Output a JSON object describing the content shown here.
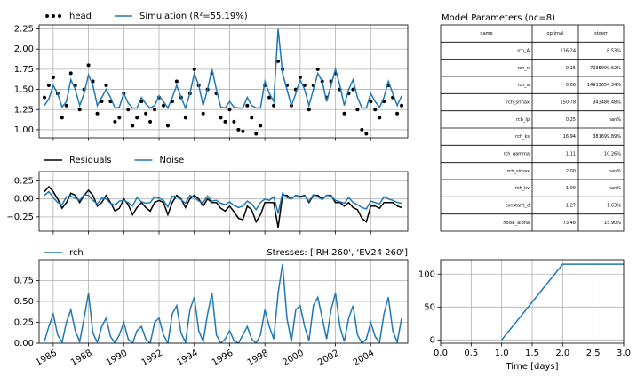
{
  "chart_data": [
    {
      "type": "line",
      "grid": true,
      "x": [
        1985.5,
        1985.75,
        1986,
        1986.25,
        1986.5,
        1986.75,
        1987,
        1987.25,
        1987.5,
        1987.75,
        1988,
        1988.25,
        1988.5,
        1988.75,
        1989,
        1989.25,
        1989.5,
        1989.75,
        1990,
        1990.25,
        1990.5,
        1990.75,
        1991,
        1991.25,
        1991.5,
        1991.75,
        1992,
        1992.25,
        1992.5,
        1992.75,
        1993,
        1993.25,
        1993.5,
        1993.75,
        1994,
        1994.25,
        1994.5,
        1994.75,
        1995,
        1995.25,
        1995.5,
        1995.75,
        1996,
        1996.25,
        1996.5,
        1996.75,
        1997,
        1997.25,
        1997.5,
        1997.75,
        1998,
        1998.25,
        1998.5,
        1998.75,
        1999,
        1999.25,
        1999.5,
        1999.75,
        2000,
        2000.25,
        2000.5,
        2000.75,
        2001,
        2001.25,
        2001.5,
        2001.75,
        2002,
        2002.25,
        2002.5,
        2002.75,
        2003,
        2003.25,
        2003.5,
        2003.75,
        2004,
        2004.25,
        2004.5,
        2004.75,
        2005,
        2005.25,
        2005.5,
        2005.75
      ],
      "xlim": [
        1985.2,
        2006.1
      ],
      "xticks": [
        1986,
        1988,
        1990,
        1992,
        1994,
        1996,
        1998,
        2000,
        2002,
        2004
      ],
      "ylim": [
        0.9,
        2.3
      ],
      "yticks": [
        {
          "value": 1,
          "label": "1.00"
        },
        {
          "value": 1.25,
          "label": "1.25"
        },
        {
          "value": 1.5,
          "label": "1.50"
        },
        {
          "value": 1.75,
          "label": "1.75"
        },
        {
          "value": 2,
          "label": "2.00"
        },
        {
          "value": 2.25,
          "label": "2.25"
        }
      ],
      "series": [
        {
          "name": "head",
          "color": "#000000",
          "style": "dots",
          "values": [
            1.4,
            1.55,
            1.65,
            1.45,
            1.15,
            1.3,
            1.7,
            1.55,
            1.25,
            1.5,
            1.8,
            1.6,
            1.2,
            1.35,
            1.55,
            1.35,
            1.1,
            1.15,
            1.45,
            1.25,
            1.05,
            1.15,
            1.35,
            1.2,
            1.1,
            1.25,
            1.4,
            1.3,
            1.05,
            1.35,
            1.6,
            1.4,
            1.15,
            1.45,
            1.75,
            1.55,
            1.2,
            1.5,
            1.7,
            1.45,
            1.15,
            1.1,
            1.25,
            1.1,
            1.0,
            0.98,
            1.3,
            1.15,
            0.95,
            1.05,
            1.55,
            1.4,
            1.3,
            1.85,
            1.75,
            1.55,
            1.3,
            1.5,
            1.65,
            1.55,
            1.25,
            1.55,
            1.75,
            1.6,
            1.4,
            1.6,
            1.7,
            1.5,
            1.2,
            1.45,
            1.5,
            1.25,
            1.0,
            0.95,
            1.35,
            1.25,
            1.15,
            1.35,
            1.55,
            1.4,
            1.2,
            1.3
          ]
        },
        {
          "name": "Simulation (R²=55.19%)",
          "color": "#1f77b4",
          "style": "line",
          "values": [
            1.3,
            1.38,
            1.55,
            1.45,
            1.28,
            1.35,
            1.62,
            1.5,
            1.3,
            1.45,
            1.68,
            1.55,
            1.3,
            1.4,
            1.5,
            1.4,
            1.27,
            1.28,
            1.45,
            1.33,
            1.27,
            1.27,
            1.4,
            1.32,
            1.27,
            1.3,
            1.42,
            1.35,
            1.27,
            1.4,
            1.55,
            1.4,
            1.27,
            1.45,
            1.7,
            1.55,
            1.3,
            1.5,
            1.75,
            1.5,
            1.28,
            1.27,
            1.35,
            1.28,
            1.27,
            1.27,
            1.4,
            1.3,
            1.27,
            1.27,
            1.6,
            1.45,
            1.35,
            2.25,
            1.7,
            1.5,
            1.3,
            1.45,
            1.62,
            1.5,
            1.3,
            1.5,
            1.7,
            1.6,
            1.35,
            1.55,
            1.75,
            1.55,
            1.3,
            1.5,
            1.62,
            1.4,
            1.27,
            1.27,
            1.45,
            1.35,
            1.28,
            1.4,
            1.6,
            1.45,
            1.3,
            1.42
          ]
        }
      ]
    },
    {
      "type": "line",
      "grid": true,
      "x": [
        1985.5,
        1985.75,
        1986,
        1986.25,
        1986.5,
        1986.75,
        1987,
        1987.25,
        1987.5,
        1987.75,
        1988,
        1988.25,
        1988.5,
        1988.75,
        1989,
        1989.25,
        1989.5,
        1989.75,
        1990,
        1990.25,
        1990.5,
        1990.75,
        1991,
        1991.25,
        1991.5,
        1991.75,
        1992,
        1992.25,
        1992.5,
        1992.75,
        1993,
        1993.25,
        1993.5,
        1993.75,
        1994,
        1994.25,
        1994.5,
        1994.75,
        1995,
        1995.25,
        1995.5,
        1995.75,
        1996,
        1996.25,
        1996.5,
        1996.75,
        1997,
        1997.25,
        1997.5,
        1997.75,
        1998,
        1998.25,
        1998.5,
        1998.75,
        1999,
        1999.25,
        1999.5,
        1999.75,
        2000,
        2000.25,
        2000.5,
        2000.75,
        2001,
        2001.25,
        2001.5,
        2001.75,
        2002,
        2002.25,
        2002.5,
        2002.75,
        2003,
        2003.25,
        2003.5,
        2003.75,
        2004,
        2004.25,
        2004.5,
        2004.75,
        2005,
        2005.25,
        2005.5,
        2005.75
      ],
      "xlim": [
        1985.2,
        2006.1
      ],
      "xticks": [
        1986,
        1988,
        1990,
        1992,
        1994,
        1996,
        1998,
        2000,
        2002,
        2004
      ],
      "ylim": [
        -0.45,
        0.38
      ],
      "yticks": [
        {
          "value": -0.25,
          "label": "−0.25"
        },
        {
          "value": 0,
          "label": "0.00"
        },
        {
          "value": 0.25,
          "label": "0.25"
        }
      ],
      "series": [
        {
          "name": "Residuals",
          "color": "#000000",
          "style": "line",
          "values": [
            0.1,
            0.17,
            0.1,
            0.0,
            -0.13,
            -0.05,
            0.08,
            0.05,
            -0.05,
            0.05,
            0.12,
            0.05,
            -0.1,
            -0.05,
            0.05,
            -0.05,
            -0.17,
            -0.13,
            0.0,
            -0.08,
            -0.22,
            -0.12,
            -0.05,
            -0.12,
            -0.17,
            -0.05,
            -0.02,
            -0.05,
            -0.22,
            -0.05,
            0.05,
            0.0,
            -0.12,
            0.0,
            0.05,
            0.0,
            -0.1,
            0.0,
            -0.05,
            -0.05,
            -0.13,
            -0.17,
            -0.1,
            -0.18,
            -0.27,
            -0.29,
            -0.1,
            -0.15,
            -0.32,
            -0.22,
            -0.05,
            -0.05,
            -0.05,
            -0.4,
            0.05,
            0.05,
            0.0,
            0.05,
            0.03,
            0.05,
            -0.05,
            0.05,
            0.05,
            0.0,
            0.05,
            0.05,
            -0.05,
            -0.05,
            -0.1,
            -0.05,
            -0.12,
            -0.15,
            -0.27,
            -0.32,
            -0.1,
            -0.1,
            -0.13,
            -0.05,
            -0.05,
            -0.05,
            -0.1,
            -0.12
          ]
        },
        {
          "name": "Noise",
          "color": "#1f77b4",
          "style": "line",
          "values": [
            0.05,
            0.1,
            0.02,
            -0.05,
            -0.08,
            0.03,
            0.04,
            0.01,
            -0.02,
            0.06,
            0.05,
            -0.02,
            -0.07,
            0.01,
            0.0,
            -0.06,
            -0.09,
            -0.03,
            -0.02,
            -0.05,
            -0.1,
            0.02,
            -0.04,
            -0.06,
            -0.05,
            0.03,
            0.01,
            -0.02,
            -0.11,
            0.04,
            0.03,
            -0.01,
            -0.06,
            0.05,
            0.02,
            -0.03,
            -0.05,
            0.04,
            -0.03,
            -0.02,
            -0.06,
            -0.08,
            -0.04,
            -0.09,
            -0.12,
            -0.1,
            -0.03,
            -0.07,
            -0.15,
            -0.05,
            0.0,
            -0.02,
            0.03,
            -0.2,
            0.08,
            0.02,
            0.0,
            0.05,
            0.02,
            0.04,
            -0.03,
            0.06,
            0.03,
            -0.01,
            0.05,
            0.04,
            -0.02,
            -0.04,
            -0.06,
            0.02,
            -0.05,
            -0.08,
            -0.12,
            -0.14,
            -0.03,
            -0.05,
            -0.07,
            0.03,
            0.0,
            -0.02,
            -0.05,
            -0.06
          ]
        }
      ]
    },
    {
      "type": "line",
      "grid": true,
      "title": "Stresses: ['RH 260', 'EV24 260']",
      "x": [
        1985.5,
        1985.75,
        1986,
        1986.25,
        1986.5,
        1986.75,
        1987,
        1987.25,
        1987.5,
        1987.75,
        1988,
        1988.25,
        1988.5,
        1988.75,
        1989,
        1989.25,
        1989.5,
        1989.75,
        1990,
        1990.25,
        1990.5,
        1990.75,
        1991,
        1991.25,
        1991.5,
        1991.75,
        1992,
        1992.25,
        1992.5,
        1992.75,
        1993,
        1993.25,
        1993.5,
        1993.75,
        1994,
        1994.25,
        1994.5,
        1994.75,
        1995,
        1995.25,
        1995.5,
        1995.75,
        1996,
        1996.25,
        1996.5,
        1996.75,
        1997,
        1997.25,
        1997.5,
        1997.75,
        1998,
        1998.25,
        1998.5,
        1998.75,
        1999,
        1999.25,
        1999.5,
        1999.75,
        2000,
        2000.25,
        2000.5,
        2000.75,
        2001,
        2001.25,
        2001.5,
        2001.75,
        2002,
        2002.25,
        2002.5,
        2002.75,
        2003,
        2003.25,
        2003.5,
        2003.75,
        2004,
        2004.25,
        2004.5,
        2004.75,
        2005,
        2005.25,
        2005.5,
        2005.75
      ],
      "xlim": [
        1985.2,
        2006.1
      ],
      "xticks": [
        1986,
        1988,
        1990,
        1992,
        1994,
        1996,
        1998,
        2000,
        2002,
        2004
      ],
      "ylim": [
        0,
        1.0
      ],
      "yticks": [
        {
          "value": 0,
          "label": "0.00"
        },
        {
          "value": 0.25,
          "label": "0.25"
        },
        {
          "value": 0.5,
          "label": "0.50"
        },
        {
          "value": 0.75,
          "label": "0.75"
        }
      ],
      "series": [
        {
          "name": "rch",
          "color": "#1f77b4",
          "style": "line",
          "values": [
            0.02,
            0.2,
            0.35,
            0.1,
            0.01,
            0.25,
            0.4,
            0.15,
            0.02,
            0.3,
            0.6,
            0.12,
            0.01,
            0.2,
            0.3,
            0.08,
            0.0,
            0.1,
            0.25,
            0.05,
            0.0,
            0.15,
            0.2,
            0.05,
            0.0,
            0.25,
            0.3,
            0.1,
            0.0,
            0.35,
            0.45,
            0.12,
            0.01,
            0.4,
            0.55,
            0.15,
            0.02,
            0.35,
            0.6,
            0.1,
            0.0,
            0.05,
            0.15,
            0.03,
            0.0,
            0.1,
            0.2,
            0.05,
            0.0,
            0.1,
            0.4,
            0.2,
            0.05,
            0.6,
            0.95,
            0.3,
            0.02,
            0.4,
            0.45,
            0.2,
            0.03,
            0.45,
            0.55,
            0.3,
            0.05,
            0.4,
            0.6,
            0.2,
            0.02,
            0.3,
            0.45,
            0.1,
            0.0,
            0.05,
            0.25,
            0.08,
            0.01,
            0.35,
            0.55,
            0.15,
            0.01,
            0.3
          ]
        }
      ]
    },
    {
      "type": "line",
      "grid": true,
      "xlabel": "Time [days]",
      "x": [
        1,
        2,
        3
      ],
      "values": [
        0,
        115,
        115
      ],
      "color": "#1f77b4",
      "xlim": [
        0,
        3
      ],
      "xticks": [
        {
          "value": 0,
          "label": "0.0"
        },
        {
          "value": 0.5,
          "label": "0.5"
        },
        {
          "value": 1,
          "label": "1.0"
        },
        {
          "value": 1.5,
          "label": "1.5"
        },
        {
          "value": 2,
          "label": "2.0"
        },
        {
          "value": 2.5,
          "label": "2.5"
        },
        {
          "value": 3,
          "label": "3.0"
        }
      ],
      "ylim": [
        -5,
        122
      ],
      "yticks": [
        0,
        50,
        100
      ]
    }
  ],
  "table": {
    "title": "Model Parameters (nc=8)",
    "columns": [
      "name",
      "optimal",
      "stderr"
    ],
    "rows": [
      [
        "rch_A",
        "116.24",
        "8.53%"
      ],
      [
        "rch_n",
        "0.15",
        "7235999.62%"
      ],
      [
        "rch_a",
        "0.06",
        "14933654.34%"
      ],
      [
        "rch_srmax",
        "150.78",
        "343486.48%"
      ],
      [
        "rch_lp",
        "0.25",
        "nan%"
      ],
      [
        "rch_ks",
        "16.94",
        "381699.89%"
      ],
      [
        "rch_gamma",
        "1.11",
        "10.26%"
      ],
      [
        "rch_simax",
        "2.00",
        "nan%"
      ],
      [
        "rch_kv",
        "1.00",
        "nan%"
      ],
      [
        "constant_d",
        "1.27",
        "1.63%"
      ],
      [
        "noise_alpha",
        "73.48",
        "15.90%"
      ]
    ]
  }
}
